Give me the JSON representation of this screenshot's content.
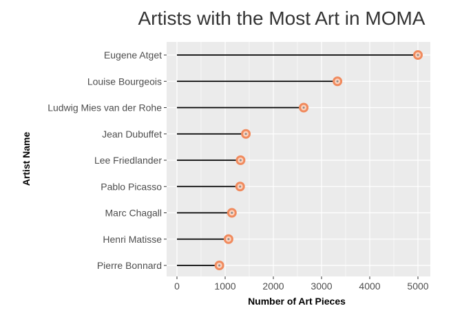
{
  "chart_data": {
    "type": "lollipop",
    "title": "Artists with the Most Art in MOMA",
    "xlabel": "Number of Art Pieces",
    "ylabel": "Artist Name",
    "xlim": [
      -250,
      5250
    ],
    "xticks": [
      0,
      1000,
      2000,
      3000,
      4000,
      5000
    ],
    "categories": [
      "Eugene Atget",
      "Louise Bourgeois",
      "Ludwig Mies van der Rohe",
      "Jean Dubuffet",
      "Lee Friedlander",
      "Pablo Picasso",
      "Marc Chagall",
      "Henri Matisse",
      "Pierre Bonnard"
    ],
    "values": [
      5000,
      3330,
      2630,
      1430,
      1320,
      1310,
      1140,
      1070,
      880
    ],
    "grid": true,
    "colors": {
      "panel": "#ebebeb",
      "grid": "#ffffff",
      "stem": "#000000",
      "marker_ring": "#f08a5d",
      "marker_fill": "#fcd2bd",
      "marker_center": "#8c8c8c"
    }
  }
}
